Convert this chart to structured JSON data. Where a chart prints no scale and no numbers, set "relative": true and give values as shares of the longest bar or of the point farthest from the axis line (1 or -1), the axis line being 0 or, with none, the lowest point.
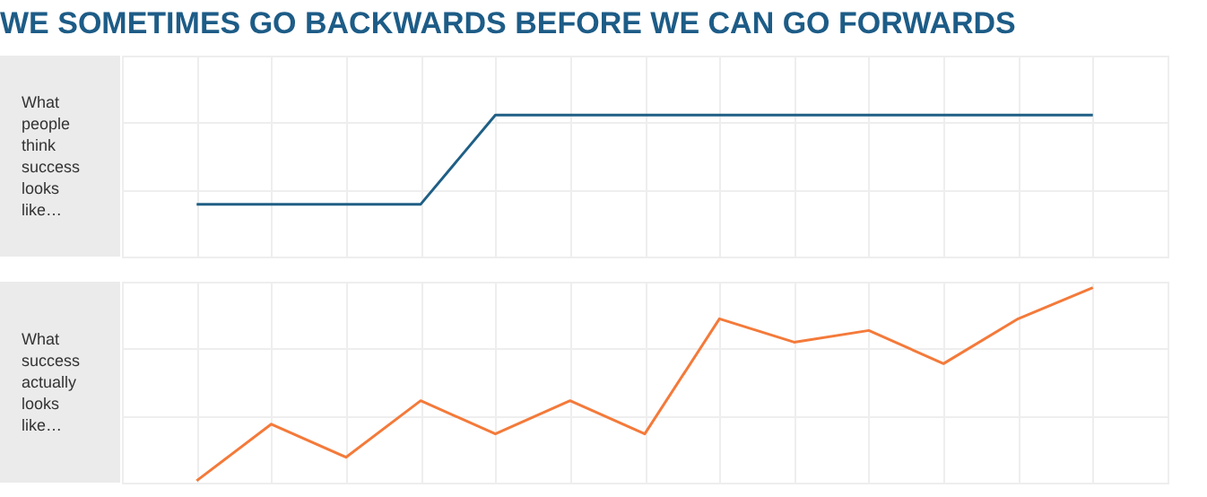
{
  "chart_data": [
    {
      "type": "line",
      "title": "WE SOMETIMES GO BACKWARDS BEFORE WE CAN GO FORWARDS",
      "ylabel": "What people think success looks like…",
      "categories": [
        null,
        null,
        null,
        null,
        null,
        null,
        null,
        null,
        null,
        null,
        null,
        null,
        null
      ],
      "relative": true,
      "grid": true,
      "series": [
        {
          "color": "#1f5f85",
          "values": [
            0.37,
            0.37,
            0.37,
            0.37,
            1.0,
            1.0,
            1.0,
            1.0,
            1.0,
            1.0,
            1.0,
            1.0,
            1.0
          ]
        }
      ]
    },
    {
      "type": "line",
      "ylabel": "What success actually looks like…",
      "categories": [
        null,
        null,
        null,
        null,
        null,
        null,
        null,
        null,
        null,
        null,
        null,
        null,
        null
      ],
      "relative": true,
      "grid": true,
      "series": [
        {
          "color": "#f47a3a",
          "values": [
            0.01,
            0.3,
            0.13,
            0.42,
            0.25,
            0.42,
            0.25,
            0.84,
            0.72,
            0.78,
            0.61,
            0.84,
            1.0
          ]
        }
      ]
    }
  ]
}
